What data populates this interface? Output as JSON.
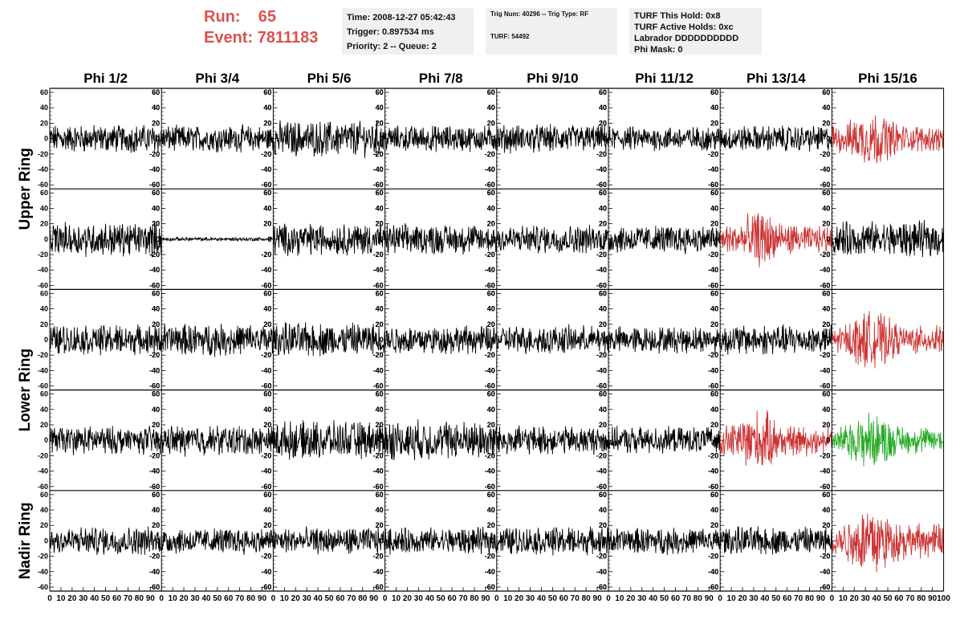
{
  "header": {
    "run_label": "Run:",
    "run_value": "65",
    "event_label": "Event:",
    "event_value": "7811183",
    "time_line": "Time: 2008-12-27 05:42:43",
    "trigger_line": "Trigger: 0.897534 ms",
    "priority_line": "Priority: 2 -- Queue: 2",
    "trig_line": "Trig Num: 40296 -- Trig Type: RF",
    "turf_line": "TURF: 54492",
    "turf_hold_line": "TURF This Hold: 0x8",
    "turf_active_line": "TURF Active Holds: 0xc",
    "labrador_line": "Labrador DDDDDDDDDD",
    "phi_mask_line": "Phi Mask: 0"
  },
  "chart_data": {
    "type": "line",
    "columns": [
      "Phi 1/2",
      "Phi 3/4",
      "Phi 5/6",
      "Phi 7/8",
      "Phi 9/10",
      "Phi 11/12",
      "Phi 13/14",
      "Phi 15/16"
    ],
    "ring_labels": [
      {
        "label": "Upper Ring",
        "rows": [
          0,
          1
        ]
      },
      {
        "label": "Lower Ring",
        "rows": [
          2,
          3
        ]
      },
      {
        "label": "Nadir Ring",
        "rows": [
          4
        ]
      }
    ],
    "rows": 5,
    "xlim": [
      0,
      100
    ],
    "ylim": [
      -60,
      60
    ],
    "left_ticks": [
      60,
      40,
      20,
      0,
      -20,
      -40,
      -60
    ],
    "right_ticks": [
      60,
      40,
      20,
      0,
      -20,
      -40,
      -60
    ],
    "x_tick_labels": [
      "0",
      "10",
      "20",
      "30",
      "40",
      "50",
      "60",
      "70",
      "80",
      "90",
      "100"
    ],
    "colors": {
      "normal": "#000000",
      "triggered": "#cc3333",
      "hold": "#22aa22"
    },
    "panels": [
      [
        {
          "amp": 15,
          "color": "normal"
        },
        {
          "amp": 14,
          "color": "normal"
        },
        {
          "amp": 19,
          "color": "normal"
        },
        {
          "amp": 14,
          "color": "normal"
        },
        {
          "amp": 15,
          "color": "normal"
        },
        {
          "amp": 13,
          "color": "normal"
        },
        {
          "amp": 14,
          "color": "normal"
        },
        {
          "amp": 22,
          "color": "triggered"
        }
      ],
      [
        {
          "amp": 18,
          "color": "normal"
        },
        {
          "amp": 2,
          "color": "normal"
        },
        {
          "amp": 17,
          "color": "normal"
        },
        {
          "amp": 16,
          "color": "normal"
        },
        {
          "amp": 15,
          "color": "normal"
        },
        {
          "amp": 15,
          "color": "normal"
        },
        {
          "amp": 22,
          "color": "triggered"
        },
        {
          "amp": 19,
          "color": "normal"
        }
      ],
      [
        {
          "amp": 16,
          "color": "normal"
        },
        {
          "amp": 17,
          "color": "normal"
        },
        {
          "amp": 18,
          "color": "normal"
        },
        {
          "amp": 15,
          "color": "normal"
        },
        {
          "amp": 15,
          "color": "normal"
        },
        {
          "amp": 14,
          "color": "normal"
        },
        {
          "amp": 16,
          "color": "normal"
        },
        {
          "amp": 23,
          "color": "triggered"
        }
      ],
      [
        {
          "amp": 15,
          "color": "normal"
        },
        {
          "amp": 16,
          "color": "normal"
        },
        {
          "amp": 20,
          "color": "normal"
        },
        {
          "amp": 21,
          "color": "normal"
        },
        {
          "amp": 15,
          "color": "normal"
        },
        {
          "amp": 14,
          "color": "normal"
        },
        {
          "amp": 24,
          "color": "triggered"
        },
        {
          "amp": 22,
          "color": "hold"
        }
      ],
      [
        {
          "amp": 15,
          "color": "normal"
        },
        {
          "amp": 14,
          "color": "normal"
        },
        {
          "amp": 14,
          "color": "normal"
        },
        {
          "amp": 14,
          "color": "normal"
        },
        {
          "amp": 15,
          "color": "normal"
        },
        {
          "amp": 14,
          "color": "normal"
        },
        {
          "amp": 15,
          "color": "normal"
        },
        {
          "amp": 28,
          "color": "triggered"
        }
      ]
    ]
  }
}
